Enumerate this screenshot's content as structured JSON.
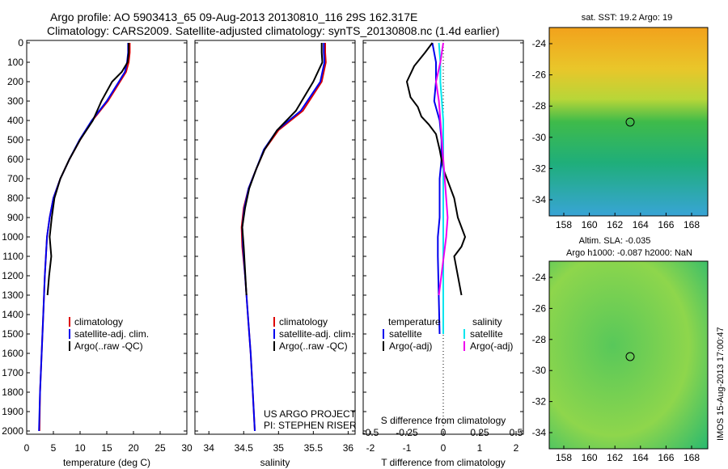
{
  "title": {
    "line1": "Argo profile: AO 5903413_65 09-Aug-2013 20130810_116 29S 162.317E",
    "line2": "Climatology: CARS2009. Satellite-adjusted climatology: synTS_20130808.nc (1.4d earlier)"
  },
  "depth_ticks": [
    "0",
    "100",
    "200",
    "300",
    "400",
    "500",
    "600",
    "700",
    "800",
    "900",
    "1000",
    "1100",
    "1200",
    "1300",
    "1400",
    "1500",
    "1600",
    "1700",
    "1800",
    "1900",
    "2000"
  ],
  "colors": {
    "clim": "#dd0000",
    "sat": "#0000ee",
    "argo": "#000000",
    "sat_s": "#00e5ee",
    "argo_s": "#ee00ee"
  },
  "panels": {
    "temp": {
      "xlabel": "temperature (deg C)",
      "ticks": [
        "0",
        "5",
        "10",
        "15",
        "20",
        "25",
        "30"
      ],
      "legend": [
        "climatology",
        "satellite-adj. clim.",
        "Argo(..raw -QC)"
      ]
    },
    "sal": {
      "xlabel": "salinity",
      "ticks": [
        "34",
        "34.5",
        "35",
        "35.5",
        "36"
      ],
      "legend": [
        "climatology",
        "satellite-adj. clim.",
        "Argo(..raw -QC)"
      ],
      "credit1": "US ARGO PROJECT",
      "credit2": "PI: STEPHEN RISER"
    },
    "diff": {
      "xlabel": "T difference from climatology",
      "xlabel_top": "S difference from climatology",
      "t_ticks": [
        "-2",
        "-1",
        "0",
        "1",
        "2"
      ],
      "s_ticks": [
        "-0.5",
        "-0.25",
        "0",
        "0.25",
        "0.5"
      ],
      "legend_t_head": "temperature",
      "legend_s_head": "salinity",
      "legend_t": [
        "satellite",
        "Argo(-adj)"
      ],
      "legend_s": [
        "satellite",
        "Argo(-adj)"
      ]
    }
  },
  "maps": {
    "sst_title": "sat. SST: 19.2  Argo: 19",
    "sla_title1": "Altim. SLA: -0.035",
    "sla_title2": "Argo h1000: -0.087  h2000: NaN",
    "lon_ticks": [
      "158",
      "160",
      "162",
      "164",
      "166",
      "168"
    ],
    "lat_ticks": [
      "-24",
      "-26",
      "-28",
      "-30",
      "-32",
      "-34"
    ]
  },
  "footer": "IMOS 15-Aug-2013 17:00:47",
  "chart_data": [
    {
      "type": "line",
      "xlabel": "temperature (deg C)",
      "ylabel": "",
      "xlim": [
        0,
        30
      ],
      "ylim": [
        0,
        2000
      ],
      "series": [
        {
          "name": "climatology",
          "x": [
            19.3,
            19.3,
            19.1,
            18.6,
            15.2,
            12.3,
            10.0,
            8.0,
            6.3,
            5.0,
            4.3,
            3.8,
            3.4,
            3.1,
            2.8,
            2.5,
            2.4
          ],
          "y": [
            0,
            50,
            100,
            150,
            300,
            400,
            500,
            600,
            700,
            800,
            900,
            1000,
            1200,
            1400,
            1600,
            1800,
            2000
          ]
        },
        {
          "name": "satellite-adj. clim.",
          "x": [
            19.0,
            19.0,
            18.8,
            18.4,
            15.0,
            12.2,
            9.9,
            8.0,
            6.3,
            5.0,
            4.3,
            3.8,
            3.4,
            3.1,
            2.8,
            2.5,
            2.3
          ],
          "y": [
            0,
            50,
            100,
            150,
            300,
            400,
            500,
            600,
            700,
            800,
            900,
            1000,
            1200,
            1400,
            1600,
            1800,
            2000
          ]
        },
        {
          "name": "Argo(..raw -QC)",
          "x": [
            19.1,
            19.1,
            18.9,
            17.8,
            16.0,
            14.0,
            12.4,
            10.0,
            8.0,
            6.3,
            5.2,
            4.7,
            4.3,
            4.6,
            4.2,
            3.9
          ],
          "y": [
            0,
            50,
            100,
            150,
            200,
            300,
            400,
            500,
            600,
            700,
            800,
            900,
            1000,
            1100,
            1200,
            1300
          ]
        }
      ]
    },
    {
      "type": "line",
      "xlabel": "salinity",
      "ylabel": "",
      "xlim": [
        33.8,
        36.1
      ],
      "ylim": [
        0,
        2000
      ],
      "series": [
        {
          "name": "climatology",
          "x": [
            35.67,
            35.67,
            35.68,
            35.62,
            35.35,
            35.0,
            34.8,
            34.68,
            34.57,
            34.5,
            34.47,
            34.48,
            34.52,
            34.56,
            34.6,
            34.63,
            34.66
          ],
          "y": [
            0,
            50,
            100,
            200,
            350,
            450,
            550,
            650,
            750,
            850,
            950,
            1050,
            1200,
            1400,
            1600,
            1800,
            2000
          ]
        },
        {
          "name": "satellite-adj. clim.",
          "x": [
            35.65,
            35.65,
            35.66,
            35.6,
            35.32,
            34.98,
            34.79,
            34.68,
            34.57,
            34.51,
            34.48,
            34.49,
            34.52,
            34.56,
            34.6,
            34.63,
            34.66
          ],
          "y": [
            0,
            50,
            100,
            200,
            350,
            450,
            550,
            650,
            750,
            850,
            950,
            1050,
            1200,
            1400,
            1600,
            1800,
            2000
          ]
        },
        {
          "name": "Argo(..raw -QC)",
          "x": [
            35.62,
            35.62,
            35.63,
            35.5,
            35.25,
            34.98,
            34.8,
            34.68,
            34.58,
            34.52,
            34.48,
            34.5,
            34.54
          ],
          "y": [
            0,
            50,
            100,
            200,
            350,
            450,
            550,
            650,
            750,
            850,
            950,
            1050,
            1300
          ]
        }
      ]
    },
    {
      "type": "line",
      "xlabel": "T difference from climatology",
      "ylabel": "",
      "xlim": [
        -2.2,
        2.2
      ],
      "ylim": [
        0,
        2000
      ],
      "series": [
        {
          "name": "satellite",
          "x": [
            -0.3,
            -0.2,
            -0.2,
            -0.25,
            -0.1,
            -0.05,
            -0.05,
            -0.1,
            -0.1,
            -0.1,
            -0.15,
            -0.15,
            -0.1
          ],
          "y": [
            0,
            100,
            200,
            300,
            400,
            500,
            600,
            700,
            800,
            900,
            1000,
            1100,
            1500
          ]
        },
        {
          "name": "Argo(-adj)",
          "x": [
            -0.3,
            -0.5,
            -0.8,
            -1.0,
            -0.9,
            -0.7,
            -0.6,
            -0.4,
            -0.2,
            -0.1,
            0.0,
            0.2,
            0.3,
            0.4,
            0.6,
            0.5,
            0.3,
            0.4,
            0.5
          ],
          "y": [
            0,
            50,
            120,
            200,
            280,
            330,
            380,
            420,
            470,
            550,
            650,
            750,
            800,
            900,
            1000,
            1050,
            1100,
            1200,
            1300
          ]
        }
      ]
    },
    {
      "type": "line",
      "xlabel": "S difference from climatology",
      "ylabel": "",
      "xlim": [
        -0.55,
        0.55
      ],
      "ylim": [
        0,
        2000
      ],
      "series": [
        {
          "name": "satellite",
          "x": [
            -0.03,
            -0.02,
            -0.02,
            -0.01,
            0.0,
            0.0,
            0.0,
            0.0,
            0.0,
            0.0
          ],
          "y": [
            0,
            100,
            200,
            300,
            400,
            500,
            600,
            700,
            800,
            1500
          ]
        },
        {
          "name": "Argo(-adj)",
          "x": [
            0.0,
            -0.02,
            -0.05,
            -0.03,
            -0.01,
            0.0,
            0.01,
            0.02,
            0.03,
            0.02,
            -0.03
          ],
          "y": [
            0,
            100,
            200,
            300,
            500,
            600,
            700,
            800,
            900,
            1000,
            1300
          ]
        }
      ]
    }
  ]
}
